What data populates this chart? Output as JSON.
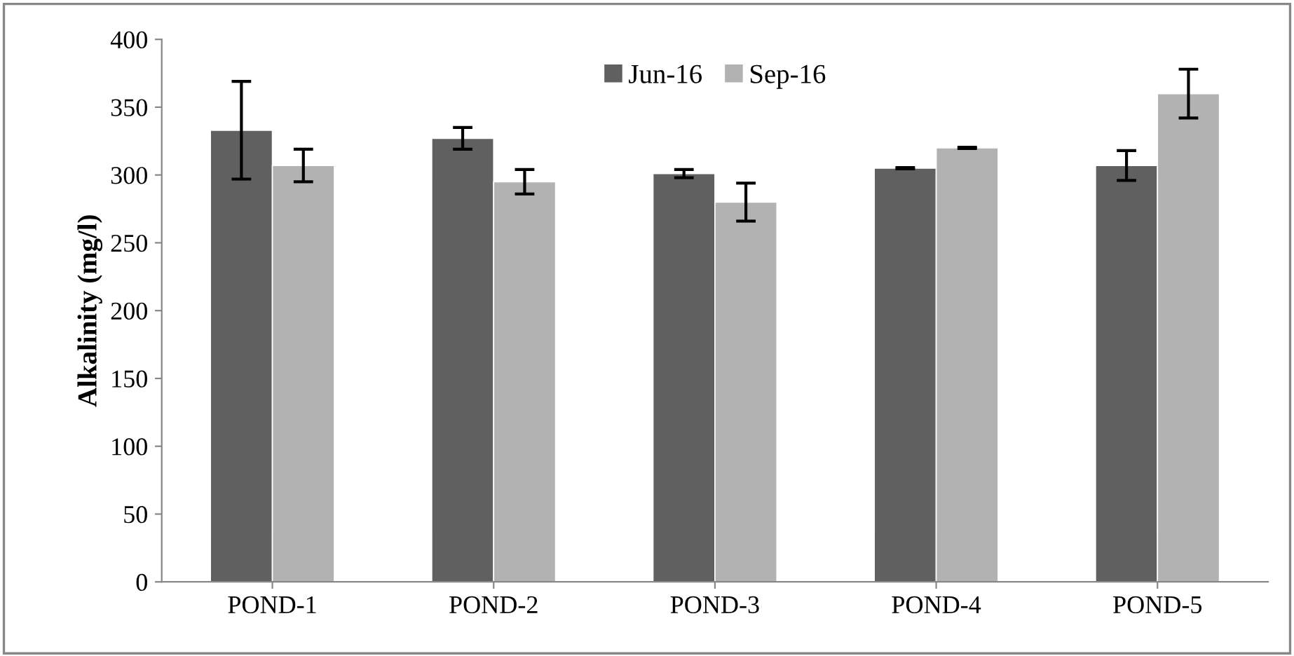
{
  "chart_data": {
    "type": "bar",
    "ylabel": "Alkalinity (mg/l)",
    "categories": [
      "POND-1",
      "POND-2",
      "POND-3",
      "POND-4",
      "POND-5"
    ],
    "series": [
      {
        "name": "Jun-16",
        "color": "#606060",
        "values": [
          333,
          327,
          301,
          305,
          307
        ],
        "errors": [
          36,
          8,
          3,
          0.5,
          11
        ]
      },
      {
        "name": "Sep-16",
        "color": "#b2b2b2",
        "values": [
          307,
          295,
          280,
          320,
          360
        ],
        "errors": [
          12,
          9,
          14,
          0.5,
          18
        ]
      }
    ],
    "ylim": [
      0,
      400
    ],
    "yticks": [
      0,
      50,
      100,
      150,
      200,
      250,
      300,
      350,
      400
    ],
    "grid": false,
    "legend": "top"
  }
}
